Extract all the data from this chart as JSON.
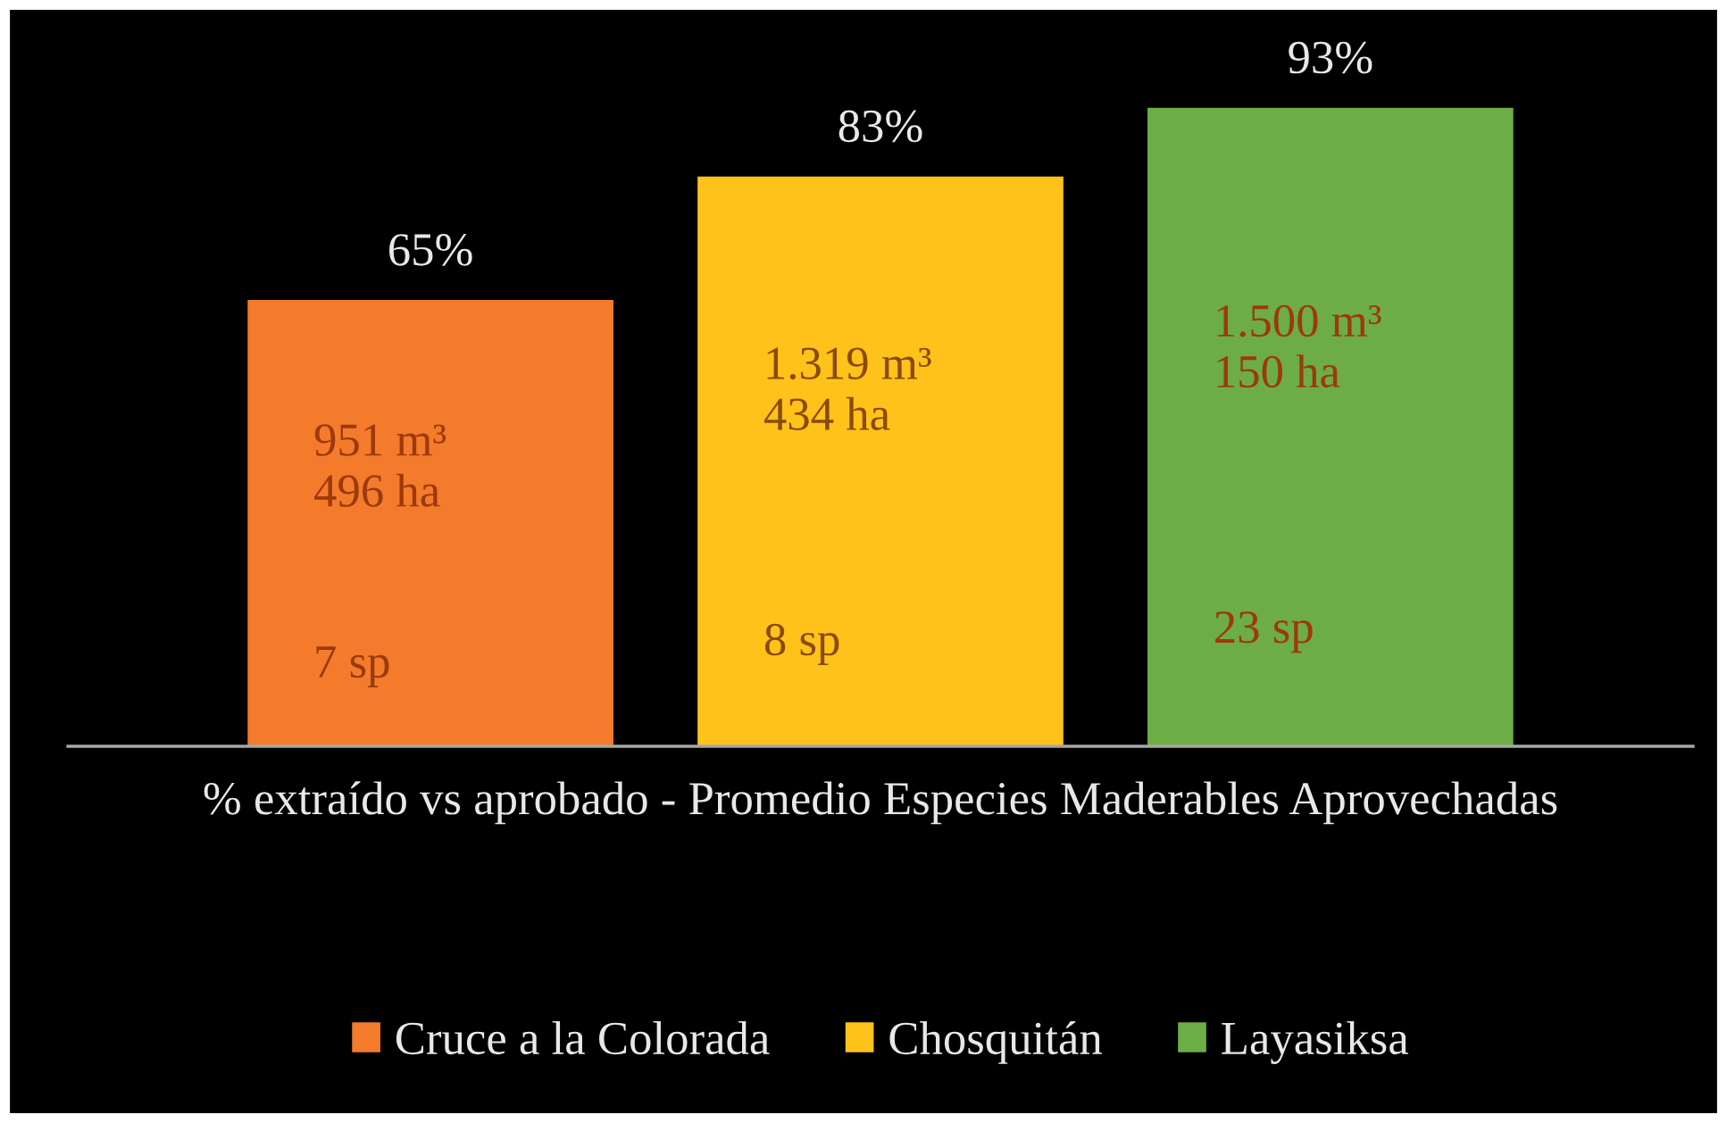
{
  "chart_data": {
    "type": "bar",
    "categories": [
      null,
      null,
      null
    ],
    "xlabel": "% extraído vs aprobado - Promedio Especies Maderables Aprovechadas",
    "series": [
      {
        "name": "Cruce a la Colorada",
        "color": "#f47b2c",
        "values": [
          65,
          null,
          null
        ],
        "value_labels": [
          "65%",
          null,
          null
        ]
      },
      {
        "name": "Chosquitán",
        "color": "#ffc21a",
        "values": [
          null,
          83,
          null
        ],
        "value_labels": [
          null,
          "83%",
          null
        ]
      },
      {
        "name": "Layasiksa",
        "color": "#6dad45",
        "values": [
          null,
          null,
          93
        ],
        "value_labels": [
          null,
          null,
          "93%"
        ]
      }
    ],
    "annotations": [
      "951 m³\n496 ha",
      "7 sp",
      "1.319 m³\n434 ha",
      "8 sp",
      "1.500 m³\n150 ha",
      "23 sp"
    ],
    "stacked": true,
    "legend": "bottom",
    "grid": false
  }
}
